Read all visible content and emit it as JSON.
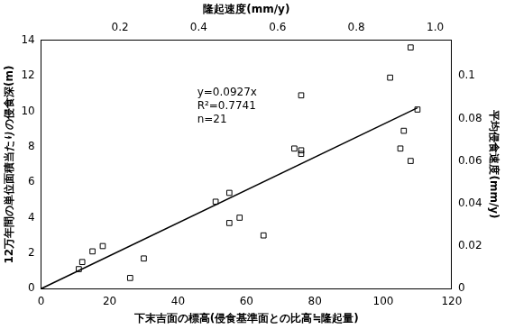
{
  "chart_data": {
    "type": "scatter",
    "x_label": "下末吉面の標高(侵食基準面との比高≒隆起量)",
    "y_label": "12万年間の単位面積当たりの侵食深(m)",
    "x2_label": "隆起速度(mm/y)",
    "y2_label": "平均侵食速度(mm/y)",
    "xlim": [
      0,
      120
    ],
    "xticks": [
      0,
      20,
      40,
      60,
      80,
      100,
      120
    ],
    "ylim": [
      0,
      14
    ],
    "yticks": [
      0,
      2,
      4,
      6,
      8,
      10,
      12,
      14
    ],
    "x2lim": [
      0,
      1.042
    ],
    "x2ticks": [
      0.2,
      0.4,
      0.6,
      0.8,
      {
        "value": 1,
        "label": "1.0"
      }
    ],
    "y2lim": [
      0,
      0.1167
    ],
    "y2ticks": [
      0,
      0.02,
      0.04,
      0.06,
      0.08,
      0.1
    ],
    "x": [
      11,
      12,
      15,
      18,
      26,
      30,
      51,
      55,
      55,
      58,
      65,
      74,
      76,
      76,
      76,
      102,
      105,
      106,
      108,
      108,
      110
    ],
    "values": [
      1.1,
      1.5,
      2.1,
      2.4,
      0.6,
      1.7,
      4.9,
      5.4,
      3.7,
      4.0,
      3.0,
      7.9,
      7.8,
      7.6,
      10.9,
      11.9,
      7.9,
      8.9,
      13.6,
      7.2,
      10.1
    ],
    "color": "#000000",
    "marker": "square",
    "fit": {
      "slope": 0.0927,
      "xlim": [
        0,
        110
      ],
      "color": "#000000",
      "line_style": "solid"
    },
    "annotations": [
      "y=0.0927x",
      "R²=0.7741",
      "n=21"
    ],
    "grid": false
  }
}
